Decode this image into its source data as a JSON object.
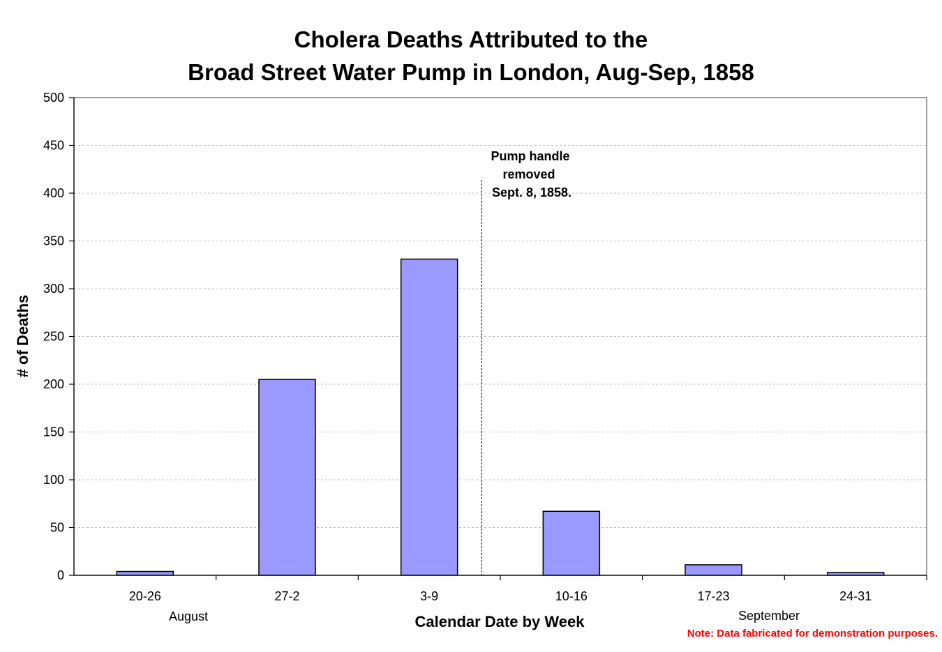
{
  "chart_data": {
    "type": "bar",
    "title_lines": [
      "Cholera Deaths Attributed to the",
      "Broad Street Water Pump in London, Aug-Sep, 1858"
    ],
    "xlabel": "Calendar Date by Week",
    "ylabel": "# of Deaths",
    "categories": [
      "20-26",
      "27-2",
      "3-9",
      "10-16",
      "17-23",
      "24-31"
    ],
    "values": [
      4,
      205,
      331,
      67,
      11,
      3
    ],
    "ylim": [
      0,
      500
    ],
    "yticks": [
      0,
      50,
      100,
      150,
      200,
      250,
      300,
      350,
      400,
      450,
      500
    ],
    "grid": "horizontal dashed",
    "month_labels": [
      "August",
      "September"
    ],
    "annotation_lines": [
      "Pump handle",
      "removed",
      "Sept. 8, 1858."
    ],
    "note": "Note: Data fabricated for demonstration purposes.",
    "colors": {
      "bar_fill": "#9999ff",
      "bar_stroke": "#000000",
      "grid": "#bfbfbf",
      "note": "#ff0000",
      "text": "#000000"
    }
  }
}
